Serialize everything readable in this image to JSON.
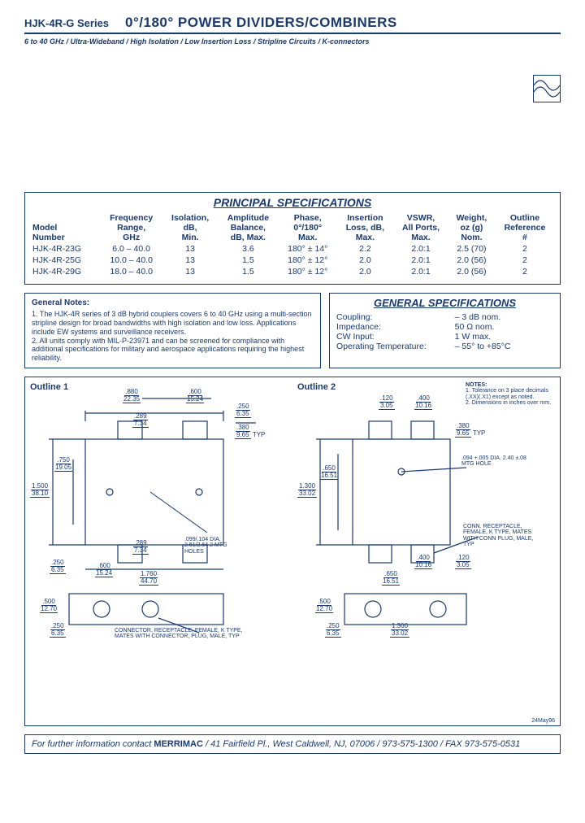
{
  "header": {
    "series": "HJK-4R-G Series",
    "title": "0°/180° POWER DIVIDERS/COMBINERS",
    "subtitle": "6 to 40 GHz / Ultra-Wideband / High Isolation / Low Insertion Loss / Stripline Circuits / K-connectors"
  },
  "principal": {
    "title": "PRINCIPAL SPECIFICATIONS",
    "columns": [
      "Model\nNumber",
      "Frequency\nRange,\nGHz",
      "Isolation,\ndB,\nMin.",
      "Amplitude\nBalance,\ndB, Max.",
      "Phase,\n0°/180°\nMax.",
      "Insertion\nLoss, dB,\nMax.",
      "VSWR,\nAll Ports,\nMax.",
      "Weight,\noz (g)\nNom.",
      "Outline\nReference\n#"
    ],
    "rows": [
      [
        "HJK-4R-23G",
        "6.0 – 40.0",
        "13",
        "3.6",
        "180° ± 14°",
        "2.2",
        "2.0:1",
        "2.5 (70)",
        "2"
      ],
      [
        "HJK-4R-25G",
        "10.0 – 40.0",
        "13",
        "1.5",
        "180° ± 12°",
        "2.0",
        "2.0:1",
        "2.0 (56)",
        "2"
      ],
      [
        "HJK-4R-29G",
        "18.0 – 40.0",
        "13",
        "1.5",
        "180° ± 12°",
        "2.0",
        "2.0:1",
        "2.0 (56)",
        "2"
      ]
    ]
  },
  "notes": {
    "heading": "General Notes:",
    "n1": "1. The HJK-4R series of 3 dB hybrid couplers covers 6 to 40 GHz using a multi-section stripline design for broad bandwidths with high isolation and low loss. Applications include EW systems and surveillance receivers.",
    "n2": "2. All units comply with MIL-P-23971 and can be screened for compliance with additional specifications for military and aerospace applications requiring the highest reliability."
  },
  "general": {
    "title": "GENERAL SPECIFICATIONS",
    "rows": [
      {
        "k": "Coupling:",
        "v": "– 3 dB nom."
      },
      {
        "k": "Impedance:",
        "v": "50 Ω nom."
      },
      {
        "k": "CW Input:",
        "v": "1 W max."
      },
      {
        "k": "Operating Temperature:",
        "v": "– 55° to +85°C"
      }
    ]
  },
  "outlines": {
    "o1_label": "Outline 1",
    "o2_label": "Outline 2",
    "notes_h": "NOTES:",
    "notes_1": "1. Tolerance on 3 place decimals (.XX)(.X1) except as noted.",
    "notes_2": "2. Dimensions in inches over mm.",
    "conn_note": "CONN. RECEPTACLE, FEMALE, K TYPE, MATES WITH CONN PLUG, MALE, TYP",
    "mtg_hole": ".094 +.005 DIA. 2.40 ±.08 MTG HOLE",
    "dia_note": ".099/.104 DIA. 2.51/2.64 2 MTG HOLES",
    "o1_back_note": "CONNECTOR, RECEPTACLE, FEMALE, K TYPE, MATES WITH CONNECTOR, PLUG, MALE, TYP",
    "date": "24May96",
    "dims": {
      "d880": ".880\n22.35",
      "d600": ".600\n15.24",
      "d250": ".250\n6.35",
      "d289": ".289\n7.34",
      "d380": ".380\n9.65",
      "d750": ".750\n19.05",
      "d1500": "1.500\n38.10",
      "d1760": "1.760\n44.70",
      "d500": ".500\n12.70",
      "d400": ".400\n10.16",
      "d120_305": ".120\n3.05",
      "d650_1651": ".650\n16.51",
      "d1300": "1.300\n33.02",
      "d_typ": "TYP"
    }
  },
  "footer": {
    "text_pre": "For further information contact ",
    "brand": "MERRIMAC",
    "text_post": " / 41 Fairfield Pl., West Caldwell, NJ, 07006 /  973-575-1300 / FAX 973-575-0531"
  }
}
